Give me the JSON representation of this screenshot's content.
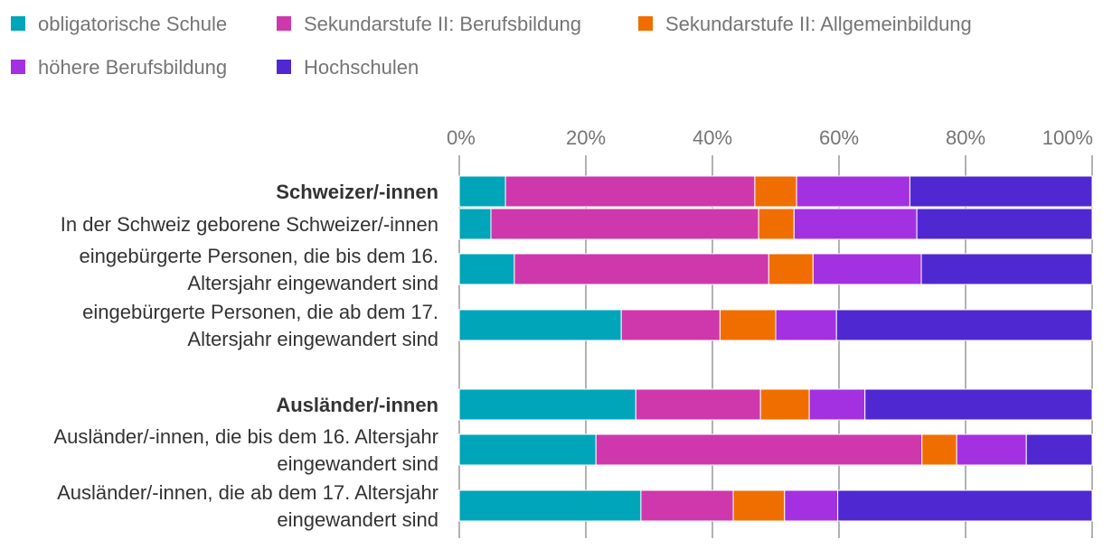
{
  "chart_data": {
    "type": "bar",
    "orientation": "horizontal",
    "stacked": true,
    "title": "",
    "xlabel": "",
    "ylabel": "",
    "xlim": [
      0,
      100
    ],
    "x_ticks": [
      "0%",
      "20%",
      "40%",
      "60%",
      "80%",
      "100%"
    ],
    "grid": true,
    "legend_position": "top",
    "series": [
      {
        "name": "obligatorische Schule",
        "color": "#00A5B9"
      },
      {
        "name": "Sekundarstufe II: Berufsbildung",
        "color": "#CE38AC"
      },
      {
        "name": "Sekundarstufe II: Allgemeinbildung",
        "color": "#F06E00"
      },
      {
        "name": "höhere Berufsbildung",
        "color": "#A431E1"
      },
      {
        "name": "Hochschulen",
        "color": "#5028D2"
      }
    ],
    "categories": [
      {
        "label": [
          "Schweizer/-innen"
        ],
        "bold": true,
        "values": [
          7.3,
          39.4,
          6.6,
          17.9,
          28.8
        ]
      },
      {
        "label": [
          "In der Schweiz geborene Schweizer/-innen"
        ],
        "bold": false,
        "values": [
          5.0,
          42.3,
          5.6,
          19.4,
          27.7
        ]
      },
      {
        "label": [
          "eingebürgerte Personen, die bis dem 16.",
          "Altersjahr eingewandert sind"
        ],
        "bold": false,
        "values": [
          8.7,
          40.2,
          7.0,
          17.1,
          27.0
        ]
      },
      {
        "label": [
          "eingebürgerte Personen, die ab dem 17.",
          "Altersjahr eingewandert sind"
        ],
        "bold": false,
        "values": [
          25.6,
          15.6,
          8.8,
          9.6,
          40.4
        ]
      },
      {
        "label": [
          "Ausländer/-innen"
        ],
        "bold": true,
        "values": [
          27.9,
          19.7,
          7.7,
          8.8,
          35.9
        ]
      },
      {
        "label": [
          "Ausländer/-innen, die bis dem 16. Altersjahr",
          "eingewandert sind"
        ],
        "bold": false,
        "values": [
          21.6,
          51.5,
          5.5,
          11.0,
          10.4
        ]
      },
      {
        "label": [
          "Ausländer/-innen, die ab dem 17. Altersjahr",
          "eingewandert sind"
        ],
        "bold": false,
        "values": [
          28.7,
          14.6,
          8.1,
          8.4,
          40.2
        ]
      }
    ]
  }
}
